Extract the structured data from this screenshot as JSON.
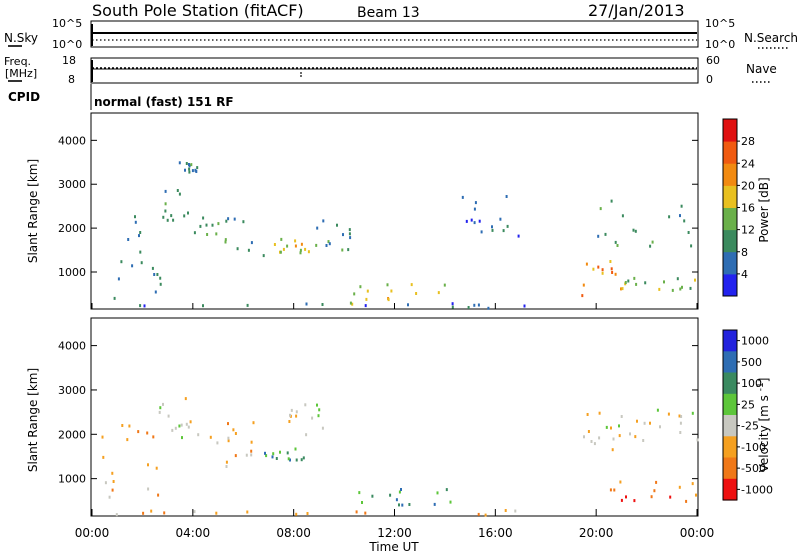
{
  "header": {
    "station": "South Pole Station (fitACF)",
    "beam": "Beam 13",
    "date": "27/Jan/2013"
  },
  "status_panels": {
    "nsky_label": "N.Sky",
    "nsky_left_top": "10^5",
    "nsky_left_bottom": "10^0",
    "nsearch_label": "N.Search",
    "nsearch_right_top": "10^5",
    "nsearch_right_bottom": "10^0",
    "freq_label_1": "Freq.",
    "freq_label_2": "[MHz]",
    "freq_left_top": "18",
    "freq_left_bottom": "8",
    "nave_label": "Nave",
    "nave_right_top": "60",
    "nave_right_bottom": "0",
    "cpid_label": "CPID",
    "cpid_text": "normal (fast) 151 RF"
  },
  "chart_data": [
    {
      "type": "heatmap",
      "name": "power",
      "ylabel": "Slant Range [km]",
      "ylim": [
        180,
        4600
      ],
      "yticks": [
        "1000",
        "2000",
        "3000",
        "4000"
      ],
      "xlabel": "",
      "xticks": [],
      "colorbar": {
        "label": "Power [dB]",
        "range": [
          0,
          32
        ],
        "ticks": [
          "4",
          "8",
          "12",
          "16",
          "20",
          "24",
          "28"
        ],
        "colors": [
          "#2222ee",
          "#2e6db3",
          "#3b8a5e",
          "#6ab04a",
          "#e8c020",
          "#f28a10",
          "#f05a10",
          "#e01010"
        ]
      },
      "regions": [
        {
          "t": [
            0.3,
            2.7
          ],
          "r": [
            400,
            2400
          ],
          "level": 2
        },
        {
          "t": [
            2.4,
            4.4
          ],
          "r": [
            1900,
            3000
          ],
          "level": 2
        },
        {
          "t": [
            3.4,
            4.4
          ],
          "r": [
            3300,
            3550
          ],
          "level": 2
        },
        {
          "t": [
            4.4,
            7.0
          ],
          "r": [
            1200,
            2300
          ],
          "level": 2
        },
        {
          "t": [
            7.0,
            8.6
          ],
          "r": [
            1400,
            1800
          ],
          "level": 4
        },
        {
          "t": [
            8.6,
            10.2
          ],
          "r": [
            1500,
            2200
          ],
          "level": 2
        },
        {
          "t": [
            10.2,
            14.2
          ],
          "r": [
            300,
            800
          ],
          "level": 4
        },
        {
          "t": [
            14.6,
            17.0
          ],
          "r": [
            1800,
            3100
          ],
          "level": 1
        },
        {
          "t": [
            19.2,
            21.2
          ],
          "r": [
            350,
            1300
          ],
          "level": 5
        },
        {
          "t": [
            19.6,
            24.0
          ],
          "r": [
            1600,
            2700
          ],
          "level": 2
        },
        {
          "t": [
            21.0,
            24.0
          ],
          "r": [
            600,
            900
          ],
          "level": 3
        },
        {
          "t": [
            0.0,
            24.0
          ],
          "r": [
            200,
            320
          ],
          "level": 1
        }
      ]
    },
    {
      "type": "heatmap",
      "name": "velocity",
      "ylabel": "Slant Range [km]",
      "ylim": [
        180,
        4600
      ],
      "yticks": [
        "1000",
        "2000",
        "3000",
        "4000"
      ],
      "xlabel": "Time UT",
      "xticks": [
        "00:00",
        "04:00",
        "08:00",
        "12:00",
        "16:00",
        "20:00",
        "00:00"
      ],
      "colorbar": {
        "label": "Velocity [m s^-1]",
        "ticks": [
          "1000",
          "500",
          "100",
          "25",
          "-25",
          "-100",
          "-500",
          "-1000"
        ],
        "colors": [
          "#2222dd",
          "#2e6db3",
          "#3a8a60",
          "#5dc63a",
          "#c8c8c0",
          "#f5a020",
          "#f07818",
          "#ee1010"
        ]
      },
      "regions": [
        {
          "t": [
            0.3,
            2.7
          ],
          "r": [
            500,
            2300
          ],
          "level": 5
        },
        {
          "t": [
            2.6,
            4.4
          ],
          "r": [
            1900,
            3000
          ],
          "level": 4
        },
        {
          "t": [
            4.4,
            6.8
          ],
          "r": [
            1200,
            2300
          ],
          "level": 5
        },
        {
          "t": [
            6.8,
            8.6
          ],
          "r": [
            1400,
            1800
          ],
          "level": 2
        },
        {
          "t": [
            7.6,
            9.4
          ],
          "r": [
            2000,
            2700
          ],
          "level": 4
        },
        {
          "t": [
            10.2,
            14.2
          ],
          "r": [
            300,
            800
          ],
          "level": 2
        },
        {
          "t": [
            19.2,
            21.0
          ],
          "r": [
            1600,
            2600
          ],
          "level": 4
        },
        {
          "t": [
            20.2,
            24.0
          ],
          "r": [
            500,
            1000
          ],
          "level": 6
        },
        {
          "t": [
            21.0,
            24.0
          ],
          "r": [
            1800,
            2600
          ],
          "level": 4
        },
        {
          "t": [
            0.0,
            24.0
          ],
          "r": [
            200,
            320
          ],
          "level": 5
        }
      ]
    }
  ]
}
